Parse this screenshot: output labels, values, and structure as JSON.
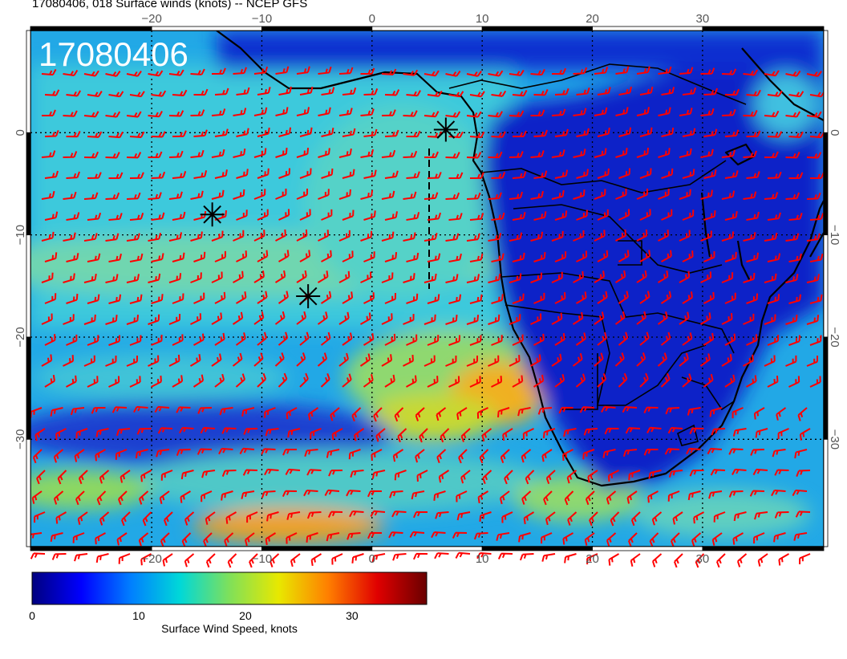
{
  "title": "17080406, 018 Surface winds (knots) -- NCEP GFS",
  "timestamp_overlay": "17080406",
  "axes": {
    "lon_ticks_top": [
      "−20",
      "−10",
      "0",
      "10",
      "20",
      "30"
    ],
    "lon_ticks_bottom": [
      "−20",
      "−10",
      "0",
      "10",
      "20",
      "30"
    ],
    "lat_ticks_left": [
      "0",
      "−10",
      "−20",
      "−30"
    ],
    "lat_ticks_right": [
      "0",
      "−10",
      "−20",
      "−30"
    ],
    "lon_values": [
      -20,
      -10,
      0,
      10,
      20,
      30
    ],
    "lat_values": [
      0,
      -10,
      -20,
      -30
    ],
    "lon_range": [
      -31,
      41
    ],
    "lat_range": [
      -40.5,
      10
    ]
  },
  "markers": {
    "stars": [
      {
        "lon": -14.5,
        "lat": -8.0
      },
      {
        "lon": -5.8,
        "lat": -16.0
      },
      {
        "lon": 6.7,
        "lat": 0.3
      }
    ]
  },
  "colorbar": {
    "ticks": [
      "0",
      "10",
      "20",
      "30"
    ],
    "tick_values": [
      0,
      10,
      20,
      30
    ],
    "range": [
      0,
      37
    ],
    "label": "Surface Wind Speed, knots",
    "colors": [
      "#00007f",
      "#0000ff",
      "#007fff",
      "#00d8d8",
      "#7fe05a",
      "#e8e800",
      "#ff7f00",
      "#e00000",
      "#6a0000"
    ]
  },
  "colors": {
    "wind_barb": "#ff0000",
    "coastline": "#000000",
    "grid": "#000000"
  }
}
